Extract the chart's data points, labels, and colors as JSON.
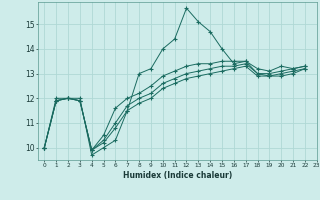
{
  "xlabel": "Humidex (Indice chaleur)",
  "background_color": "#ceecea",
  "grid_color": "#b0d8d5",
  "line_color": "#1a6b60",
  "xlim": [
    -0.5,
    23
  ],
  "ylim": [
    9.5,
    15.9
  ],
  "xticks": [
    0,
    1,
    2,
    3,
    4,
    5,
    6,
    7,
    8,
    9,
    10,
    11,
    12,
    13,
    14,
    15,
    16,
    17,
    18,
    19,
    20,
    21,
    22,
    23
  ],
  "yticks": [
    10,
    11,
    12,
    13,
    14,
    15
  ],
  "series": [
    [
      10.0,
      12.0,
      12.0,
      12.0,
      9.7,
      10.0,
      10.3,
      11.5,
      13.0,
      13.2,
      14.0,
      14.4,
      15.65,
      15.1,
      14.7,
      14.0,
      13.4,
      13.5,
      13.2,
      13.1,
      13.3,
      13.2,
      13.3
    ],
    [
      10.0,
      11.9,
      12.0,
      11.9,
      9.9,
      10.5,
      11.6,
      12.0,
      12.2,
      12.5,
      12.9,
      13.1,
      13.3,
      13.4,
      13.4,
      13.5,
      13.5,
      13.5,
      13.0,
      13.0,
      13.1,
      13.2,
      13.3
    ],
    [
      10.0,
      11.9,
      12.0,
      11.9,
      9.9,
      10.3,
      11.0,
      11.7,
      12.0,
      12.2,
      12.6,
      12.8,
      13.0,
      13.1,
      13.2,
      13.3,
      13.3,
      13.4,
      13.0,
      12.9,
      13.0,
      13.1,
      13.2
    ],
    [
      10.0,
      11.9,
      12.0,
      11.9,
      9.9,
      10.2,
      10.8,
      11.5,
      11.8,
      12.0,
      12.4,
      12.6,
      12.8,
      12.9,
      13.0,
      13.1,
      13.2,
      13.3,
      12.9,
      12.9,
      12.9,
      13.0,
      13.2
    ]
  ]
}
